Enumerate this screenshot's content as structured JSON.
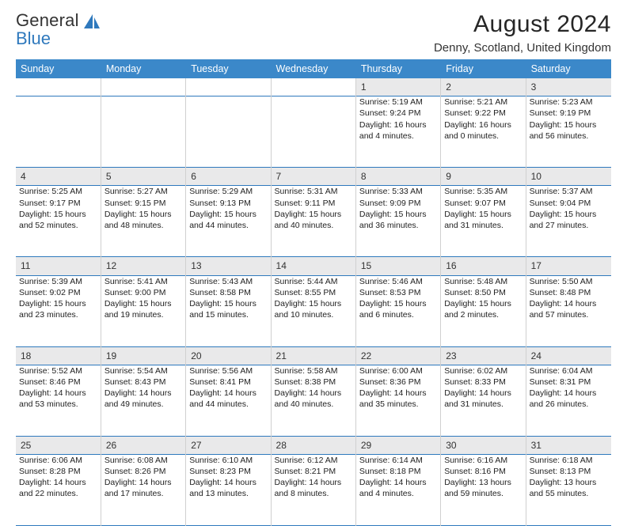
{
  "brand": {
    "word1": "General",
    "word2": "Blue",
    "mark_color": "#2f79bd"
  },
  "title": "August 2024",
  "location": "Denny, Scotland, United Kingdom",
  "colors": {
    "header_bg": "#3b88c9",
    "header_text": "#ffffff",
    "week_border": "#2e79bd",
    "daynum_bg": "#e9e9ea",
    "cell_border": "#d0d0d0",
    "page_bg": "#ffffff",
    "text": "#222222"
  },
  "typography": {
    "body_pt": 10.5,
    "daynum_pt": 12,
    "header_pt": 12.5,
    "title_pt": 30,
    "location_pt": 15
  },
  "day_headers": [
    "Sunday",
    "Monday",
    "Tuesday",
    "Wednesday",
    "Thursday",
    "Friday",
    "Saturday"
  ],
  "weeks": [
    [
      null,
      null,
      null,
      null,
      {
        "n": "1",
        "sr": "Sunrise: 5:19 AM",
        "ss": "Sunset: 9:24 PM",
        "d1": "Daylight: 16 hours",
        "d2": "and 4 minutes."
      },
      {
        "n": "2",
        "sr": "Sunrise: 5:21 AM",
        "ss": "Sunset: 9:22 PM",
        "d1": "Daylight: 16 hours",
        "d2": "and 0 minutes."
      },
      {
        "n": "3",
        "sr": "Sunrise: 5:23 AM",
        "ss": "Sunset: 9:19 PM",
        "d1": "Daylight: 15 hours",
        "d2": "and 56 minutes."
      }
    ],
    [
      {
        "n": "4",
        "sr": "Sunrise: 5:25 AM",
        "ss": "Sunset: 9:17 PM",
        "d1": "Daylight: 15 hours",
        "d2": "and 52 minutes."
      },
      {
        "n": "5",
        "sr": "Sunrise: 5:27 AM",
        "ss": "Sunset: 9:15 PM",
        "d1": "Daylight: 15 hours",
        "d2": "and 48 minutes."
      },
      {
        "n": "6",
        "sr": "Sunrise: 5:29 AM",
        "ss": "Sunset: 9:13 PM",
        "d1": "Daylight: 15 hours",
        "d2": "and 44 minutes."
      },
      {
        "n": "7",
        "sr": "Sunrise: 5:31 AM",
        "ss": "Sunset: 9:11 PM",
        "d1": "Daylight: 15 hours",
        "d2": "and 40 minutes."
      },
      {
        "n": "8",
        "sr": "Sunrise: 5:33 AM",
        "ss": "Sunset: 9:09 PM",
        "d1": "Daylight: 15 hours",
        "d2": "and 36 minutes."
      },
      {
        "n": "9",
        "sr": "Sunrise: 5:35 AM",
        "ss": "Sunset: 9:07 PM",
        "d1": "Daylight: 15 hours",
        "d2": "and 31 minutes."
      },
      {
        "n": "10",
        "sr": "Sunrise: 5:37 AM",
        "ss": "Sunset: 9:04 PM",
        "d1": "Daylight: 15 hours",
        "d2": "and 27 minutes."
      }
    ],
    [
      {
        "n": "11",
        "sr": "Sunrise: 5:39 AM",
        "ss": "Sunset: 9:02 PM",
        "d1": "Daylight: 15 hours",
        "d2": "and 23 minutes."
      },
      {
        "n": "12",
        "sr": "Sunrise: 5:41 AM",
        "ss": "Sunset: 9:00 PM",
        "d1": "Daylight: 15 hours",
        "d2": "and 19 minutes."
      },
      {
        "n": "13",
        "sr": "Sunrise: 5:43 AM",
        "ss": "Sunset: 8:58 PM",
        "d1": "Daylight: 15 hours",
        "d2": "and 15 minutes."
      },
      {
        "n": "14",
        "sr": "Sunrise: 5:44 AM",
        "ss": "Sunset: 8:55 PM",
        "d1": "Daylight: 15 hours",
        "d2": "and 10 minutes."
      },
      {
        "n": "15",
        "sr": "Sunrise: 5:46 AM",
        "ss": "Sunset: 8:53 PM",
        "d1": "Daylight: 15 hours",
        "d2": "and 6 minutes."
      },
      {
        "n": "16",
        "sr": "Sunrise: 5:48 AM",
        "ss": "Sunset: 8:50 PM",
        "d1": "Daylight: 15 hours",
        "d2": "and 2 minutes."
      },
      {
        "n": "17",
        "sr": "Sunrise: 5:50 AM",
        "ss": "Sunset: 8:48 PM",
        "d1": "Daylight: 14 hours",
        "d2": "and 57 minutes."
      }
    ],
    [
      {
        "n": "18",
        "sr": "Sunrise: 5:52 AM",
        "ss": "Sunset: 8:46 PM",
        "d1": "Daylight: 14 hours",
        "d2": "and 53 minutes."
      },
      {
        "n": "19",
        "sr": "Sunrise: 5:54 AM",
        "ss": "Sunset: 8:43 PM",
        "d1": "Daylight: 14 hours",
        "d2": "and 49 minutes."
      },
      {
        "n": "20",
        "sr": "Sunrise: 5:56 AM",
        "ss": "Sunset: 8:41 PM",
        "d1": "Daylight: 14 hours",
        "d2": "and 44 minutes."
      },
      {
        "n": "21",
        "sr": "Sunrise: 5:58 AM",
        "ss": "Sunset: 8:38 PM",
        "d1": "Daylight: 14 hours",
        "d2": "and 40 minutes."
      },
      {
        "n": "22",
        "sr": "Sunrise: 6:00 AM",
        "ss": "Sunset: 8:36 PM",
        "d1": "Daylight: 14 hours",
        "d2": "and 35 minutes."
      },
      {
        "n": "23",
        "sr": "Sunrise: 6:02 AM",
        "ss": "Sunset: 8:33 PM",
        "d1": "Daylight: 14 hours",
        "d2": "and 31 minutes."
      },
      {
        "n": "24",
        "sr": "Sunrise: 6:04 AM",
        "ss": "Sunset: 8:31 PM",
        "d1": "Daylight: 14 hours",
        "d2": "and 26 minutes."
      }
    ],
    [
      {
        "n": "25",
        "sr": "Sunrise: 6:06 AM",
        "ss": "Sunset: 8:28 PM",
        "d1": "Daylight: 14 hours",
        "d2": "and 22 minutes."
      },
      {
        "n": "26",
        "sr": "Sunrise: 6:08 AM",
        "ss": "Sunset: 8:26 PM",
        "d1": "Daylight: 14 hours",
        "d2": "and 17 minutes."
      },
      {
        "n": "27",
        "sr": "Sunrise: 6:10 AM",
        "ss": "Sunset: 8:23 PM",
        "d1": "Daylight: 14 hours",
        "d2": "and 13 minutes."
      },
      {
        "n": "28",
        "sr": "Sunrise: 6:12 AM",
        "ss": "Sunset: 8:21 PM",
        "d1": "Daylight: 14 hours",
        "d2": "and 8 minutes."
      },
      {
        "n": "29",
        "sr": "Sunrise: 6:14 AM",
        "ss": "Sunset: 8:18 PM",
        "d1": "Daylight: 14 hours",
        "d2": "and 4 minutes."
      },
      {
        "n": "30",
        "sr": "Sunrise: 6:16 AM",
        "ss": "Sunset: 8:16 PM",
        "d1": "Daylight: 13 hours",
        "d2": "and 59 minutes."
      },
      {
        "n": "31",
        "sr": "Sunrise: 6:18 AM",
        "ss": "Sunset: 8:13 PM",
        "d1": "Daylight: 13 hours",
        "d2": "and 55 minutes."
      }
    ]
  ]
}
